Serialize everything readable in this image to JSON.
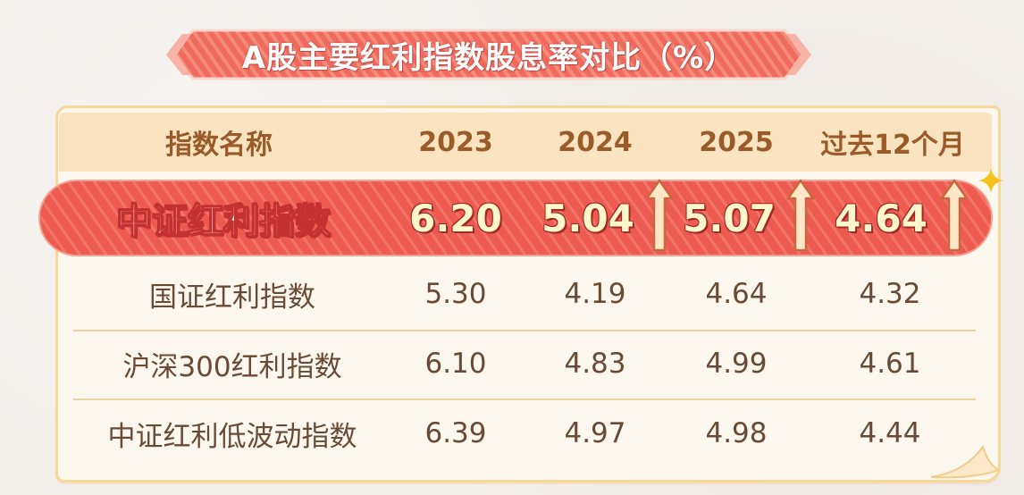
{
  "title": "A股主要红利指数股息率对比（%）",
  "table": {
    "headers": [
      "指数名称",
      "2023",
      "2024",
      "2025",
      "过去12个月"
    ],
    "highlight_row": {
      "name": "中证红利指数",
      "values": [
        "6.20",
        "5.04",
        "5.07",
        "4.64"
      ]
    },
    "rows": [
      {
        "name": "国证红利指数",
        "values": [
          "5.30",
          "4.19",
          "4.64",
          "4.32"
        ]
      },
      {
        "name": "沪深300红利指数",
        "values": [
          "6.10",
          "4.83",
          "4.99",
          "4.61"
        ]
      },
      {
        "name": "中证红利低波动指数",
        "values": [
          "6.39",
          "4.97",
          "4.98",
          "4.44"
        ]
      }
    ]
  },
  "icons": {
    "up_arrow": "up-arrow-icon",
    "sparkle": "sparkle-icon"
  },
  "colors": {
    "banner": "#f06a5e",
    "highlight": "#ee5a50",
    "header_bg": "#f9e4bf",
    "header_text": "#9a5a2a",
    "body_text": "#6a4a35"
  }
}
